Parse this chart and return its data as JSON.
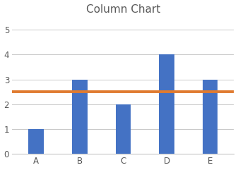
{
  "categories": [
    "A",
    "B",
    "C",
    "D",
    "E"
  ],
  "values": [
    1,
    3,
    2,
    4,
    3
  ],
  "bar_color": "#4472C4",
  "hline_value": 2.5,
  "hline_color": "#E07B30",
  "hline_linewidth": 2.8,
  "title": "Column Chart",
  "title_fontsize": 11,
  "title_color": "#595959",
  "ylim": [
    0,
    5.5
  ],
  "yticks": [
    0,
    1,
    2,
    3,
    4,
    5
  ],
  "tick_fontsize": 8.5,
  "tick_color": "#595959",
  "background_color": "#ffffff",
  "grid_color": "#c8c8c8",
  "grid_linewidth": 0.7,
  "bar_width": 0.35,
  "border_color": "#c8c8c8",
  "border_linewidth": 0.8
}
